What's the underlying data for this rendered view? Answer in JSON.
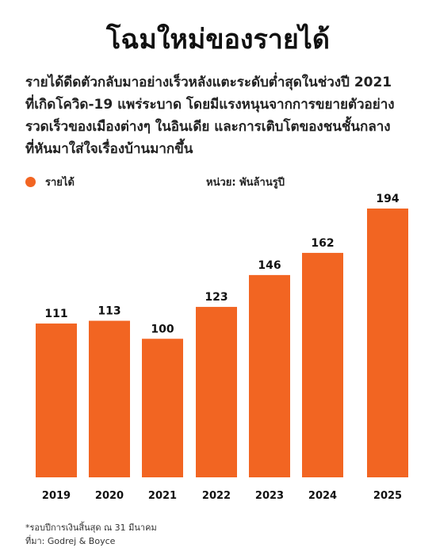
{
  "title": "โฉมใหม่ของรายได้",
  "subtitle_lines": [
    "รายได้ดีดตัวกลับมาอย่างเร็วหลังแตะระดับต่ำสุดในช่วงปี 2021",
    "ที่เกิดโควิด-19 แพร่ระบาด โดยมีแรงหนุนจากการขยายตัวอย่าง",
    "รวดเร็วของเมืองต่างๆ ในอินเดีย และการเติบโตของชนชั้นกลาง",
    "ที่หันมาใส่ใจเรื่องบ้านมากขึ้น"
  ],
  "legend_label": "รายได้",
  "unit_label": "หน่วย: พันล้านรูปี",
  "footnotes": [
    "*รอบปีการเงินสิ้นสุด ณ 31 มีนาคม",
    "ที่มา: Godrej & Boyce"
  ],
  "colors": {
    "bar": "#F26522",
    "text": "#111111"
  },
  "chart_data": {
    "type": "bar",
    "categories": [
      "2019",
      "2020",
      "2021",
      "2022",
      "2023",
      "2024",
      "2025"
    ],
    "series": [
      {
        "name": "รายได้",
        "values": [
          111,
          113,
          100,
          123,
          146,
          162,
          194
        ]
      }
    ],
    "data_labels": [
      "111",
      "113",
      "100",
      "123",
      "146",
      "162",
      "194"
    ],
    "ylabel": "หน่วย: พันล้านรูปี",
    "ylim": [
      0,
      194
    ],
    "grid": false,
    "legend": "top-left"
  }
}
